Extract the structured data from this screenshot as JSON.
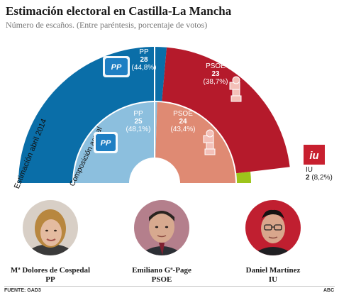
{
  "title": "Estimación electoral en Castilla-La Mancha",
  "subtitle": "Número de escaños. (Entre paréntesis, porcentaje de votos)",
  "chart_data": {
    "type": "pie",
    "subtype": "parliament-semicircle",
    "series": [
      {
        "name": "Estimación abril 2014",
        "ring": "outer",
        "slices": [
          {
            "party": "PP",
            "seats": "28",
            "pct": "(44,8%)",
            "value": 28,
            "color": "#0a6ea8"
          },
          {
            "party": "PSOE",
            "seats": "23",
            "pct": "(38,7%)",
            "value": 23,
            "color": "#b51a2b"
          },
          {
            "party": "IU",
            "seats": "2",
            "pct": "(8,2%)",
            "value": 2,
            "color": "#9dc41b"
          }
        ]
      },
      {
        "name": "Composición actual",
        "ring": "inner",
        "slices": [
          {
            "party": "PP",
            "seats": "25",
            "pct": "(48,1%)",
            "value": 25,
            "color": "#8cbfde"
          },
          {
            "party": "PSOE",
            "seats": "24",
            "pct": "(43,4%)",
            "value": 24,
            "color": "#df8a73"
          }
        ]
      }
    ],
    "legend": "none"
  },
  "logos": {
    "pp": "PP",
    "iu": "iu",
    "psoe": "psoe-rose-logo"
  },
  "candidates": [
    {
      "name": "Mª Dolores de Cospedal",
      "party": "PP",
      "color": "#c9a98d"
    },
    {
      "name": "Emiliano Gª-Page",
      "party": "PSOE",
      "color": "#b58f7a"
    },
    {
      "name": "Daniel Martínez",
      "party": "IU",
      "color": "#b81c2e"
    }
  ],
  "footer": {
    "source": "FUENTE: GAD3",
    "brand": "ABC"
  }
}
